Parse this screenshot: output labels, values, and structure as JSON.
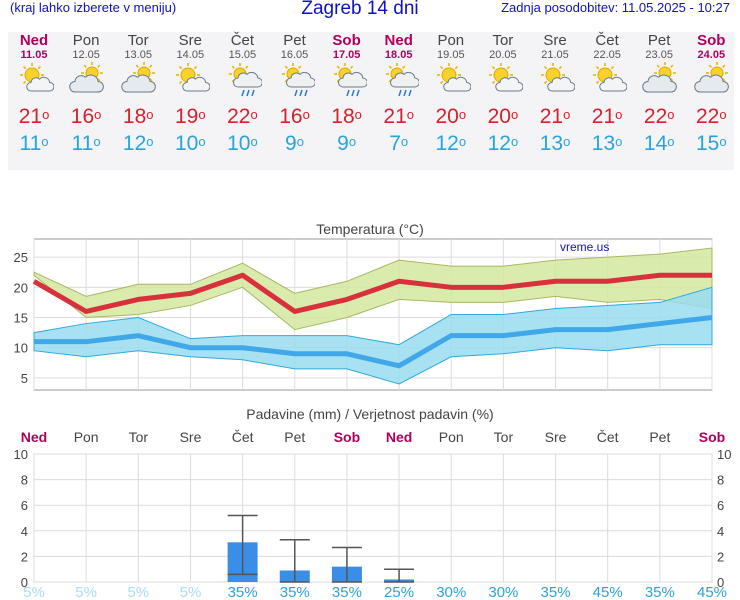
{
  "header": {
    "menu_hint": "(kraj lahko izberete v meniju)",
    "title": "Zagreb 14 dni",
    "last_update": "Zadnja posodobitev: 11.05.2025 - 10:27"
  },
  "days": [
    {
      "name": "Ned",
      "date": "11.05",
      "weekend": true,
      "icon": "sun-cloud-icon",
      "tmax": "21",
      "tmin": "11"
    },
    {
      "name": "Pon",
      "date": "12.05",
      "weekend": false,
      "icon": "cloud-sun-icon",
      "tmax": "16",
      "tmin": "11"
    },
    {
      "name": "Tor",
      "date": "13.05",
      "weekend": false,
      "icon": "cloud-sun-icon",
      "tmax": "18",
      "tmin": "12"
    },
    {
      "name": "Sre",
      "date": "14.05",
      "weekend": false,
      "icon": "sun-cloud-icon",
      "tmax": "19",
      "tmin": "10"
    },
    {
      "name": "Čet",
      "date": "15.05",
      "weekend": false,
      "icon": "sun-cloud-rain-icon",
      "tmax": "22",
      "tmin": "10"
    },
    {
      "name": "Pet",
      "date": "16.05",
      "weekend": false,
      "icon": "sun-cloud-rain-icon",
      "tmax": "16",
      "tmin": "9"
    },
    {
      "name": "Sob",
      "date": "17.05",
      "weekend": true,
      "icon": "sun-cloud-rain-icon",
      "tmax": "18",
      "tmin": "9"
    },
    {
      "name": "Ned",
      "date": "18.05",
      "weekend": true,
      "icon": "sun-cloud-rain-icon",
      "tmax": "21",
      "tmin": "7"
    },
    {
      "name": "Pon",
      "date": "19.05",
      "weekend": false,
      "icon": "sun-cloud-icon",
      "tmax": "20",
      "tmin": "12"
    },
    {
      "name": "Tor",
      "date": "20.05",
      "weekend": false,
      "icon": "sun-cloud-icon",
      "tmax": "20",
      "tmin": "12"
    },
    {
      "name": "Sre",
      "date": "21.05",
      "weekend": false,
      "icon": "sun-cloud-icon",
      "tmax": "21",
      "tmin": "13"
    },
    {
      "name": "Čet",
      "date": "22.05",
      "weekend": false,
      "icon": "sun-cloud-icon",
      "tmax": "21",
      "tmin": "13"
    },
    {
      "name": "Pet",
      "date": "23.05",
      "weekend": false,
      "icon": "cloud-sun-icon",
      "tmax": "22",
      "tmin": "14"
    },
    {
      "name": "Sob",
      "date": "24.05",
      "weekend": true,
      "icon": "cloud-sun-icon",
      "tmax": "22",
      "tmin": "15"
    }
  ],
  "colors": {
    "max_line": "#d8303c",
    "max_band": "#d4e8a0",
    "max_band_edge": "#a8b860",
    "min_line": "#40a8e8",
    "min_band": "#98dcf0",
    "min_band_edge": "#30a8e0",
    "bar": "#3a8ee6",
    "weekend": "#b0005c",
    "prob": "#28a4dc",
    "prob_low": "#a8dcf0"
  },
  "chart_data": [
    {
      "type": "line",
      "title": "Temperatura (°C)",
      "watermark": "vreme.us",
      "categories": [
        "11.05",
        "12.05",
        "13.05",
        "14.05",
        "15.05",
        "16.05",
        "17.05",
        "18.05",
        "19.05",
        "20.05",
        "21.05",
        "22.05",
        "23.05",
        "24.05"
      ],
      "ylim": [
        3,
        28
      ],
      "yticks": [
        "5",
        "10",
        "15",
        "20",
        "25"
      ],
      "grid": true,
      "series": [
        {
          "name": "max",
          "values": [
            21,
            16,
            18,
            19,
            22,
            16,
            18,
            21,
            20,
            20,
            21,
            21,
            22,
            22
          ],
          "band_low": [
            22,
            15,
            15.5,
            17,
            20,
            13,
            15,
            18,
            17.5,
            17.5,
            18.5,
            17.5,
            18,
            16.5
          ],
          "band_high": [
            22.5,
            18.5,
            20.5,
            20.5,
            24,
            19,
            21,
            24.5,
            23.5,
            23.5,
            24.5,
            25,
            25.5,
            26.5
          ]
        },
        {
          "name": "min",
          "values": [
            11,
            11,
            12,
            10,
            10,
            9,
            9,
            7,
            12,
            12,
            13,
            13,
            14,
            15
          ],
          "band_low": [
            9.5,
            8.5,
            9.5,
            8.5,
            8,
            6.5,
            6.5,
            4,
            8.5,
            9,
            10,
            9.5,
            10.5,
            10.5
          ],
          "band_high": [
            12.5,
            14,
            15,
            11.5,
            12,
            12,
            12,
            10.5,
            15.5,
            15.5,
            16.5,
            17,
            17.5,
            20
          ]
        }
      ]
    },
    {
      "type": "bar",
      "title": "Padavine (mm) / Verjetnost padavin (%)",
      "categories": [
        "Ned",
        "Pon",
        "Tor",
        "Sre",
        "Čet",
        "Pet",
        "Sob",
        "Ned",
        "Pon",
        "Tor",
        "Sre",
        "Čet",
        "Pet",
        "Sob"
      ],
      "weekend": [
        true,
        false,
        false,
        false,
        false,
        false,
        true,
        true,
        false,
        false,
        false,
        false,
        false,
        true
      ],
      "ylim": [
        0,
        10
      ],
      "yticks": [
        "0",
        "2",
        "4",
        "6",
        "8",
        "10"
      ],
      "values": [
        0,
        0,
        0,
        0,
        3.1,
        0.9,
        1.2,
        0.2,
        0,
        0,
        0,
        0,
        0,
        0
      ],
      "err_low": [
        null,
        null,
        null,
        null,
        0.6,
        0,
        0,
        0,
        null,
        null,
        null,
        null,
        null,
        null
      ],
      "err_high": [
        null,
        null,
        null,
        null,
        5.2,
        3.3,
        2.7,
        1.0,
        null,
        null,
        null,
        null,
        null,
        null
      ],
      "probability": [
        "5%",
        "5%",
        "5%",
        "5%",
        "35%",
        "35%",
        "35%",
        "25%",
        "30%",
        "30%",
        "35%",
        "45%",
        "35%",
        "45%"
      ]
    }
  ]
}
